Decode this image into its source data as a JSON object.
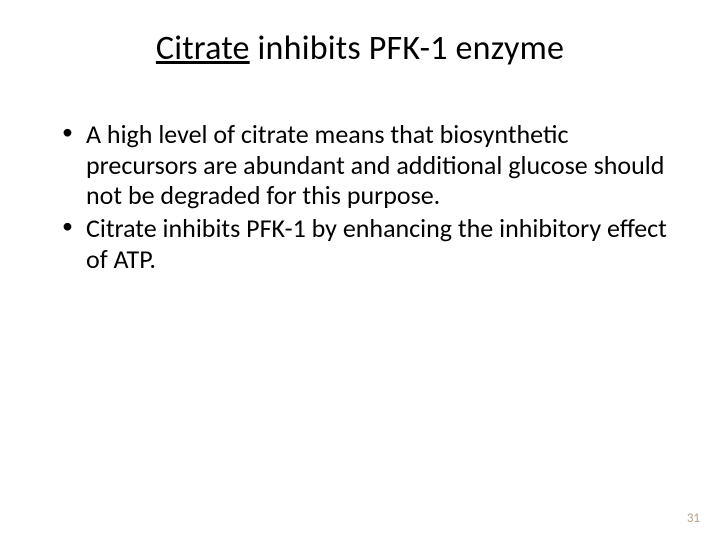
{
  "slide": {
    "title_underlined": "Citrate",
    "title_rest": " inhibits PFK-1 enzyme",
    "title_fontsize": 34,
    "bullets": [
      "A high level of citrate means that biosynthetic precursors are abundant and additional glucose should not be degraded for this purpose.",
      "Citrate inhibits PFK-1 by enhancing the inhibitory effect of ATP."
    ],
    "bullet_fontsize": 26,
    "page_number": "31",
    "background_color": "#ffffff",
    "text_color": "#000000",
    "page_number_color": "#b9a38a"
  }
}
